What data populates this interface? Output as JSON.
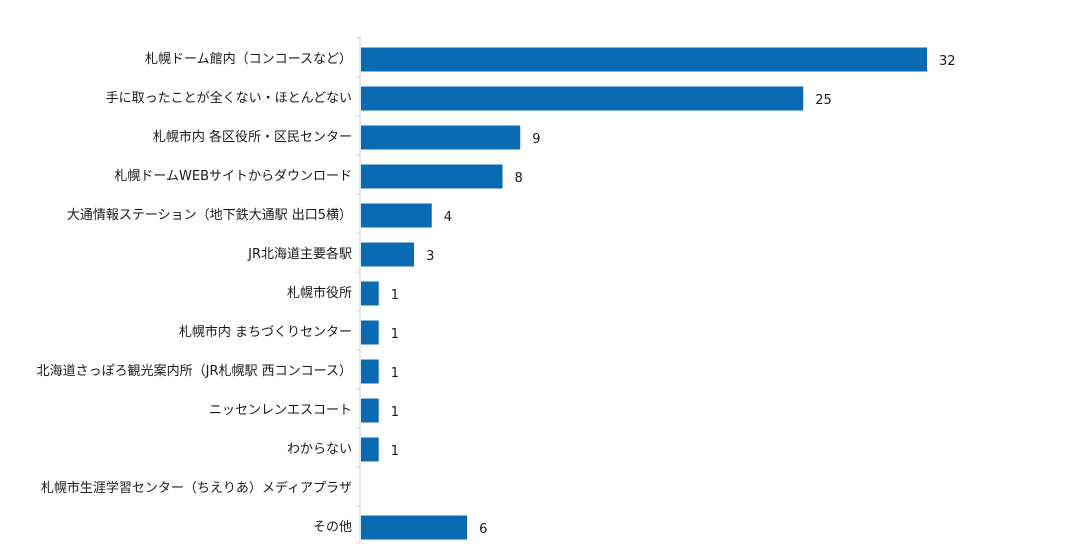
{
  "chart_data": {
    "type": "bar",
    "orientation": "horizontal",
    "title": "",
    "xlabel": "",
    "ylabel": "",
    "categories": [
      "札幌ドーム館内（コンコースなど）",
      "手に取ったことが全くない・ほとんどない",
      "札幌市内 各区役所・区民センター",
      "札幌ドームWEBサイトからダウンロード",
      "大通情報ステーション（地下鉄大通駅 出口5横）",
      "JR北海道主要各駅",
      "札幌市役所",
      "札幌市内 まちづくりセンター",
      "北海道さっぽろ観光案内所（JR札幌駅 西コンコース）",
      "ニッセンレンエスコート",
      "わからない",
      "札幌市生涯学習センター（ちえりあ）メディアプラザ",
      "その他"
    ],
    "values": [
      32,
      25,
      9,
      8,
      4,
      3,
      1,
      1,
      1,
      1,
      1,
      null,
      6
    ],
    "data_labels": [
      "32",
      "25",
      "9",
      "8",
      "4",
      "3",
      "1",
      "1",
      "1",
      "1",
      "1",
      "",
      "6"
    ],
    "xlim": [
      0,
      32
    ],
    "grid": false,
    "legend": "none",
    "bar_color": "#0a6bb3"
  }
}
